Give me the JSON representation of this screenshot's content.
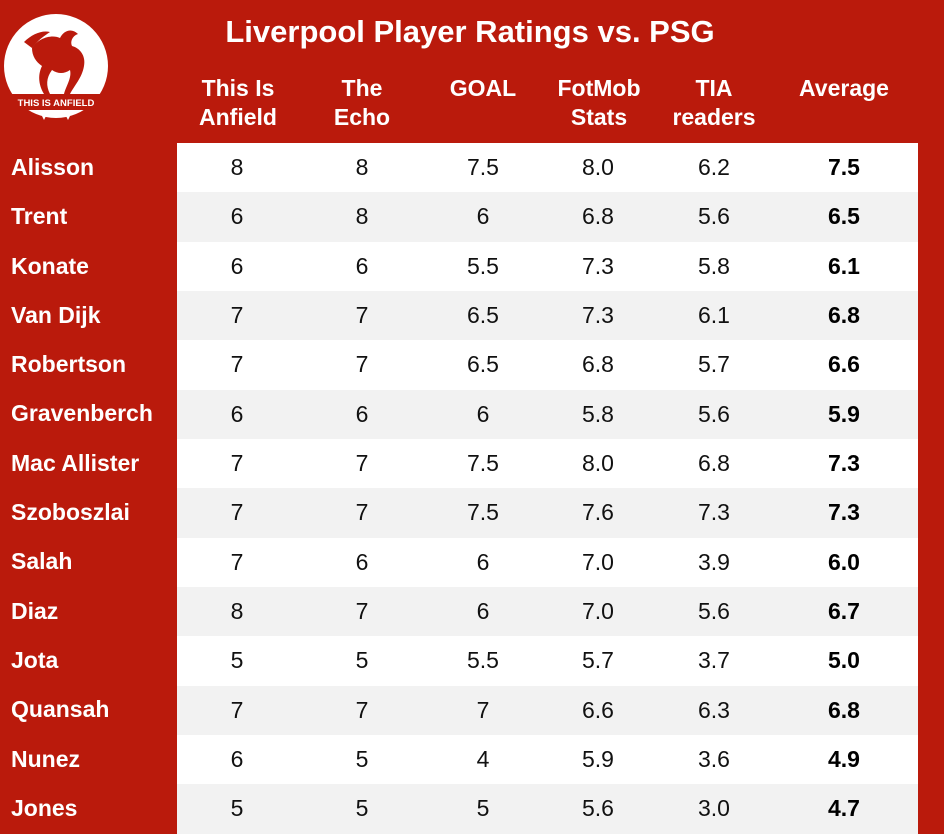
{
  "title": "Liverpool Player Ratings vs. PSG",
  "logo_text": "THIS IS ANFIELD",
  "colors": {
    "brand_red": "#ba1a0c",
    "row_alt": "#f2f2f2"
  },
  "columns": [
    {
      "line1": "This Is",
      "line2": "Anfield"
    },
    {
      "line1": "The",
      "line2": "Echo"
    },
    {
      "line1": "GOAL",
      "line2": ""
    },
    {
      "line1": "FotMob",
      "line2": "Stats"
    },
    {
      "line1": "TIA",
      "line2": "readers"
    },
    {
      "line1": "Average",
      "line2": ""
    }
  ],
  "rows": [
    {
      "player": "Alisson",
      "ratings": [
        "8",
        "8",
        "7.5",
        "8.0",
        "6.2",
        "7.5"
      ]
    },
    {
      "player": "Trent",
      "ratings": [
        "6",
        "8",
        "6",
        "6.8",
        "5.6",
        "6.5"
      ]
    },
    {
      "player": "Konate",
      "ratings": [
        "6",
        "6",
        "5.5",
        "7.3",
        "5.8",
        "6.1"
      ]
    },
    {
      "player": "Van Dijk",
      "ratings": [
        "7",
        "7",
        "6.5",
        "7.3",
        "6.1",
        "6.8"
      ]
    },
    {
      "player": "Robertson",
      "ratings": [
        "7",
        "7",
        "6.5",
        "6.8",
        "5.7",
        "6.6"
      ]
    },
    {
      "player": "Gravenberch",
      "ratings": [
        "6",
        "6",
        "6",
        "5.8",
        "5.6",
        "5.9"
      ]
    },
    {
      "player": "Mac Allister",
      "ratings": [
        "7",
        "7",
        "7.5",
        "8.0",
        "6.8",
        "7.3"
      ]
    },
    {
      "player": "Szoboszlai",
      "ratings": [
        "7",
        "7",
        "7.5",
        "7.6",
        "7.3",
        "7.3"
      ]
    },
    {
      "player": "Salah",
      "ratings": [
        "7",
        "6",
        "6",
        "7.0",
        "3.9",
        "6.0"
      ]
    },
    {
      "player": "Diaz",
      "ratings": [
        "8",
        "7",
        "6",
        "7.0",
        "5.6",
        "6.7"
      ]
    },
    {
      "player": "Jota",
      "ratings": [
        "5",
        "5",
        "5.5",
        "5.7",
        "3.7",
        "5.0"
      ]
    },
    {
      "player": "Quansah",
      "ratings": [
        "7",
        "7",
        "7",
        "6.6",
        "6.3",
        "6.8"
      ]
    },
    {
      "player": "Nunez",
      "ratings": [
        "6",
        "5",
        "4",
        "5.9",
        "3.6",
        "4.9"
      ]
    },
    {
      "player": "Jones",
      "ratings": [
        "5",
        "5",
        "5",
        "5.6",
        "3.0",
        "4.7"
      ]
    }
  ]
}
